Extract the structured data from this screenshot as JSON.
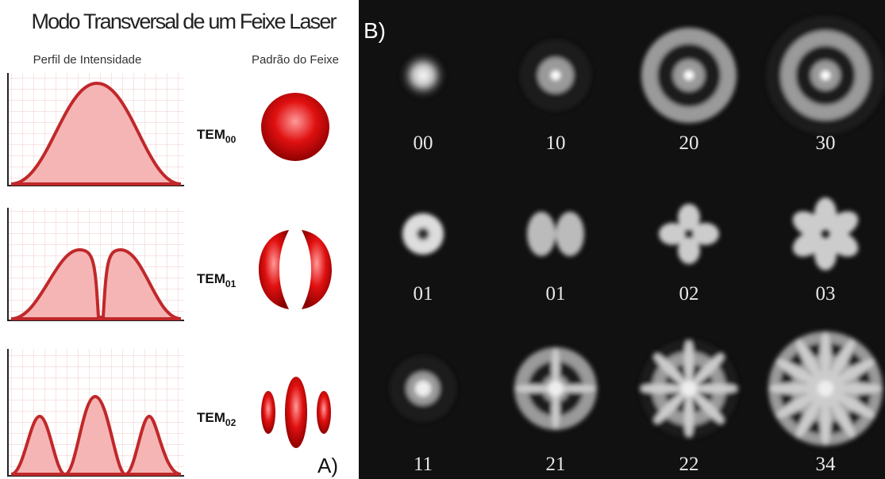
{
  "panel_a": {
    "title": "Modo Transversal de um Feixe Laser",
    "profile_header": "Perfil de Intensidade",
    "pattern_header": "Padrão do Feixe",
    "modes": [
      {
        "base": "TEM",
        "sub": "00"
      },
      {
        "base": "TEM",
        "sub": "01"
      },
      {
        "base": "TEM",
        "sub": "02"
      }
    ],
    "label": "A)"
  },
  "panel_b": {
    "label": "B)",
    "cells": [
      "00",
      "10",
      "20",
      "30",
      "01",
      "01",
      "02",
      "03",
      "11",
      "21",
      "22",
      "34"
    ]
  }
}
